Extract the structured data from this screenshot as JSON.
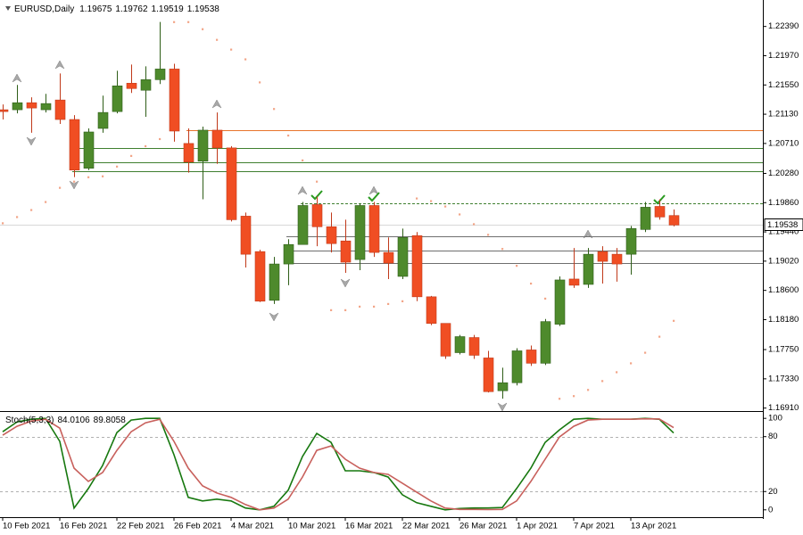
{
  "chart_data": [
    {
      "type": "candlestick",
      "title": "EURUSD,Daily",
      "categories": [
        "10 Feb 2021",
        null,
        null,
        null,
        "16 Feb 2021",
        null,
        null,
        null,
        "22 Feb 2021",
        null,
        null,
        null,
        "26 Feb 2021",
        null,
        null,
        null,
        "4 Mar 2021",
        null,
        null,
        null,
        "10 Mar 2021",
        null,
        null,
        null,
        "16 Mar 2021",
        null,
        null,
        null,
        "22 Mar 2021",
        null,
        null,
        null,
        "26 Mar 2021",
        null,
        null,
        null,
        "1 Apr 2021",
        null,
        null,
        null,
        "7 Apr 2021",
        null,
        null,
        null,
        "13 Apr 2021",
        null,
        null,
        null
      ],
      "open": [
        1.21194,
        1.21194,
        1.21295,
        1.21194,
        1.21334,
        1.21054,
        1.20354,
        1.20926,
        1.21168,
        1.21575,
        1.21474,
        1.21626,
        1.21779,
        1.2071,
        1.20455,
        1.20901,
        1.20646,
        1.19666,
        1.19157,
        1.18457,
        1.18979,
        1.19259,
        1.19832,
        1.19514,
        1.1931,
        1.19043,
        1.19819,
        1.19145,
        1.18801,
        1.19386,
        1.18508,
        1.18126,
        1.17706,
        1.17923,
        1.1763,
        1.17159,
        1.17274,
        1.17745,
        1.17554,
        1.18114,
        1.18763,
        1.18686,
        1.19157,
        1.19119,
        1.19119,
        1.19475,
        1.19806,
        1.19675
      ],
      "high": [
        1.2127,
        1.2155,
        1.21372,
        1.21423,
        1.21715,
        1.21117,
        1.20926,
        1.21397,
        1.21754,
        1.21843,
        1.21817,
        1.22454,
        1.21855,
        1.20926,
        1.20952,
        1.21155,
        1.20672,
        1.19717,
        1.19183,
        1.19081,
        1.19335,
        1.1987,
        1.19946,
        1.19717,
        1.19615,
        1.19845,
        1.1987,
        1.19361,
        1.19488,
        1.19437,
        1.18521,
        1.18126,
        1.17961,
        1.17961,
        1.17732,
        1.1749,
        1.1777,
        1.17808,
        1.1819,
        1.18801,
        1.19208,
        1.19208,
        1.19234,
        1.19208,
        1.19526,
        1.1987,
        1.19908,
        1.19762
      ],
      "low": [
        1.21054,
        1.21143,
        1.20863,
        1.21155,
        1.2099,
        1.20226,
        1.20328,
        1.20863,
        1.21143,
        1.21435,
        1.21092,
        1.21563,
        1.20735,
        1.2029,
        1.19908,
        1.20417,
        1.1959,
        1.18928,
        1.18432,
        1.18406,
        1.18674,
        1.19259,
        1.19234,
        1.19145,
        1.18852,
        1.1889,
        1.19081,
        1.18763,
        1.18763,
        1.18445,
        1.18101,
        1.17617,
        1.17681,
        1.17617,
        1.17134,
        1.17045,
        1.17236,
        1.17516,
        1.17528,
        1.18088,
        1.18636,
        1.18636,
        1.18699,
        1.18725,
        1.18826,
        1.19437,
        1.19615,
        1.19519
      ],
      "close": [
        1.21168,
        1.21295,
        1.21219,
        1.21283,
        1.21054,
        1.20328,
        1.20875,
        1.21155,
        1.21537,
        1.21499,
        1.21626,
        1.21779,
        1.20888,
        1.20443,
        1.20901,
        1.20646,
        1.19615,
        1.19119,
        1.18445,
        1.18979,
        1.19259,
        1.19819,
        1.19514,
        1.19272,
        1.19005,
        1.19819,
        1.19145,
        1.18992,
        1.19361,
        1.18508,
        1.18126,
        1.17656,
        1.17936,
        1.17668,
        1.17146,
        1.17274,
        1.17732,
        1.17554,
        1.18152,
        1.1875,
        1.18674,
        1.19119,
        1.19017,
        1.18979,
        1.19488,
        1.19794,
        1.19654,
        1.19538
      ],
      "up_color": "#4e8a2c",
      "down_color": "#f04e23",
      "sar_values": [
        1.19565,
        1.19654,
        1.19755,
        1.1987,
        1.20074,
        1.20163,
        1.20226,
        1.20239,
        1.20379,
        1.20532,
        1.20672,
        1.20774,
        1.22454,
        1.22454,
        1.22352,
        1.22199,
        1.22059,
        1.21919,
        1.21588,
        1.21206,
        1.20825,
        1.20468,
        1.20163,
        1.18317,
        1.18317,
        1.18368,
        1.18368,
        1.18406,
        1.18445,
        1.19921,
        1.19883,
        1.19806,
        1.19692,
        1.19552,
        1.19399,
        1.19196,
        1.18954,
        1.18699,
        1.18483,
        1.17045,
        1.17083,
        1.17172,
        1.17299,
        1.17426,
        1.17554,
        1.17706,
        1.17936,
        1.18164
      ],
      "sar_color": "#f2a588",
      "hlines": [
        {
          "value": 1.20901,
          "color": "#e8742c",
          "start": 13
        },
        {
          "value": 1.20646,
          "color": "#3f7f2f",
          "start": 5
        },
        {
          "value": 1.20443,
          "color": "#3f7f2f",
          "start": 5
        },
        {
          "value": 1.20316,
          "color": "#3f7f2f",
          "start": 5
        },
        {
          "value": 1.19845,
          "color": "#3f7f2f",
          "start": 21,
          "style": "dashed"
        },
        {
          "value": 1.19374,
          "color": "#6e6e6e",
          "start": 20
        },
        {
          "value": 1.1917,
          "color": "#6e6e6e",
          "start": 20
        },
        {
          "value": 1.18992,
          "color": "#6e6e6e",
          "start": 20
        }
      ],
      "ylim": [
        1.1688,
        1.2277
      ],
      "yticks": [
        {
          "value": 1.2239,
          "label": "1.22390"
        },
        {
          "value": 1.2197,
          "label": "1.21970"
        },
        {
          "value": 1.2155,
          "label": "1.21550"
        },
        {
          "value": 1.2113,
          "label": "1.21130"
        },
        {
          "value": 1.2071,
          "label": "1.20710"
        },
        {
          "value": 1.2028,
          "label": "1.20280"
        },
        {
          "value": 1.1986,
          "label": "1.19860"
        },
        {
          "value": 1.1944,
          "label": "1.19440"
        },
        {
          "value": 1.1902,
          "label": "1.19020"
        },
        {
          "value": 1.186,
          "label": "1.18600"
        },
        {
          "value": 1.1818,
          "label": "1.18180"
        },
        {
          "value": 1.1775,
          "label": "1.17750"
        },
        {
          "value": 1.1733,
          "label": "1.17330"
        },
        {
          "value": 1.1691,
          "label": "1.16910"
        }
      ]
    },
    {
      "type": "line",
      "title": "Stoch(5,3,3)",
      "series": [
        {
          "color": "#17780f",
          "values": [
            85.4,
            96.1,
            99,
            100,
            74.8,
            1.9,
            23.3,
            48.5,
            84.5,
            98.1,
            100,
            100,
            60.2,
            13.6,
            9.7,
            11.7,
            9.7,
            2,
            0,
            3.9,
            21.4,
            58.3,
            83.5,
            73.8,
            42.7,
            42.7,
            40.8,
            35.9,
            16.5,
            7.8,
            3.9,
            0,
            1.5,
            2,
            2,
            2.5,
            23.3,
            45.6,
            73.8,
            87.4,
            99,
            100,
            99,
            99,
            99,
            100,
            99,
            84.0106
          ]
        },
        {
          "color": "#c8605c",
          "values": [
            81.6,
            91.3,
            97.1,
            99,
            89.3,
            45.6,
            31.1,
            40.8,
            65,
            85.4,
            95.1,
            99,
            74.8,
            45.6,
            26.2,
            18.4,
            13.6,
            5.8,
            0,
            1.9,
            11.7,
            35.9,
            65,
            69.9,
            55.3,
            45.6,
            40.8,
            38.8,
            29.1,
            19.4,
            9.7,
            1.9,
            0.5,
            0.5,
            0.3,
            0.5,
            9.7,
            31.1,
            55.3,
            79.6,
            91.3,
            98.1,
            99,
            99,
            99,
            99.5,
            99.3,
            89.8058
          ]
        }
      ],
      "levels": [
        20,
        80
      ],
      "ylim": [
        -8,
        107
      ],
      "yticks": [
        0,
        20,
        80,
        100
      ]
    }
  ]
}
